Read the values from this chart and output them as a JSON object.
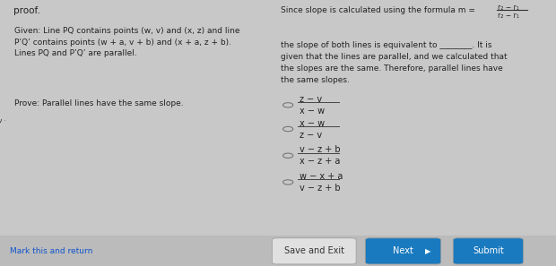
{
  "bg_color": "#c8c8c8",
  "title_top": "proof.",
  "given_text": "Given: Line PQ contains points (w, v) and (x, z) and line\nP’Q’ contains points (w + a, v + b) and (x + a, z + b).\nLines PQ and P’Q’ are parallel.",
  "prove_text": "Prove: Parallel lines have the same slope.",
  "right_top_text": "Since slope is calculated using the formula m =",
  "right_formula_num": "r₂ − r₁",
  "right_formula_den": "r₂ − r₁",
  "right_para1": "the slope of both lines is equivalent to ________. It is\ngiven that the lines are parallel, and we calculated that\nthe slopes are the same. Therefore, parallel lines have\nthe same slopes.",
  "options": [
    {
      "label": "z − v",
      "denom": "x − w"
    },
    {
      "label": "x − w",
      "denom": "z − v"
    },
    {
      "label": "v − z + b",
      "denom": "x − z + a"
    },
    {
      "label": "w − x + a",
      "denom": "v − z + b"
    }
  ],
  "bottom_link": "Mark this and return",
  "bottom_buttons": [
    "Save and Exit",
    "Next",
    "Submit"
  ],
  "next_color": "#1a7abf",
  "save_exit_color": "#e0e0e0",
  "submit_color": "#1a7abf",
  "axis_color": "#444444",
  "line_orange_color": "#cc5522",
  "line_blue_color": "#336699",
  "dot_blue": "#336699",
  "dot_orange": "#cc5522"
}
